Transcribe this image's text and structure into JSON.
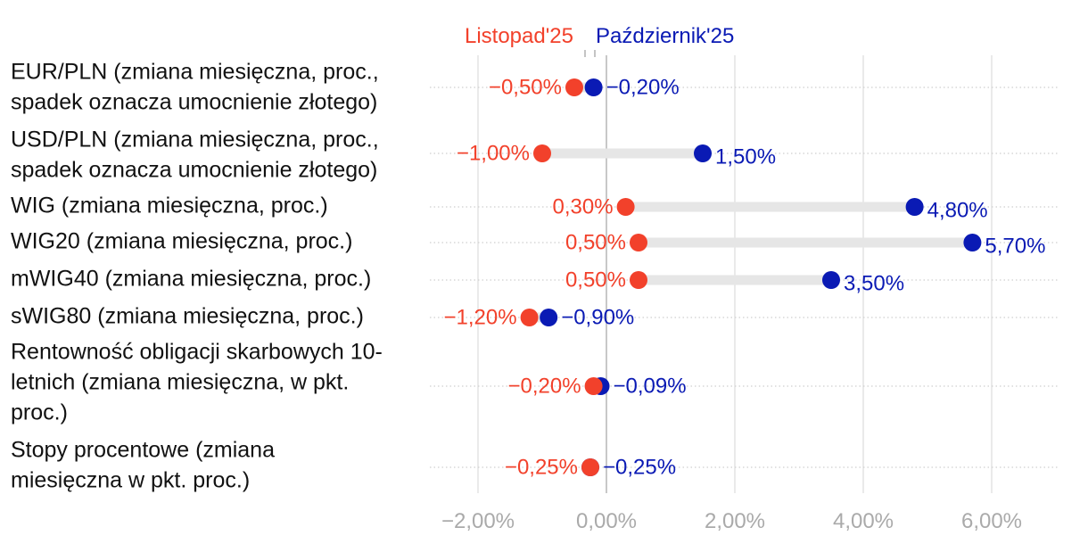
{
  "chart_data": {
    "type": "dumbbell",
    "title": "",
    "xlabel": "",
    "ylabel": "",
    "xlim": [
      -2.8,
      7.1
    ],
    "xticks": [
      -2,
      0,
      2,
      4,
      6
    ],
    "xtick_labels": [
      "−2,00%",
      "0,00%",
      "2,00%",
      "4,00%",
      "6,00%"
    ],
    "grid": true,
    "legend_position": "top",
    "series": [
      {
        "name": "Listopad'25",
        "color": "#f2412b",
        "values": [
          -0.5,
          -1.0,
          0.3,
          0.5,
          0.5,
          -1.2,
          -0.2,
          -0.25
        ],
        "labels": [
          "−0,50%",
          "−1,00%",
          "0,30%",
          "0,50%",
          "0,50%",
          "−1,20%",
          "−0,20%",
          "−0,25%"
        ]
      },
      {
        "name": "Październik'25",
        "color": "#0a1ab4",
        "values": [
          -0.2,
          1.5,
          4.8,
          5.7,
          3.5,
          -0.9,
          -0.09,
          -0.25
        ],
        "labels": [
          "−0,20%",
          "1,50%",
          "4,80%",
          "5,70%",
          "3,50%",
          "−0,90%",
          "−0,09%",
          "−0,25%"
        ]
      }
    ],
    "categories": [
      [
        "EUR/PLN (zmiana miesięczna, proc.,",
        "spadek oznacza umocnienie złotego)"
      ],
      [
        "USD/PLN (zmiana miesięczna, proc.,",
        "spadek oznacza umocnienie złotego)"
      ],
      [
        "WIG (zmiana miesięczna, proc.)"
      ],
      [
        "WIG20 (zmiana miesięczna, proc.)"
      ],
      [
        "mWIG40 (zmiana miesięczna, proc.)"
      ],
      [
        "sWIG80 (zmiana miesięczna, proc.)"
      ],
      [
        "Rentowność obligacji skarbowych 10-",
        "letnich (zmiana miesięczna, w pkt.",
        "proc.)"
      ],
      [
        "Stopy procentowe (zmiana",
        "miesięczna w pkt. proc.)"
      ]
    ]
  }
}
